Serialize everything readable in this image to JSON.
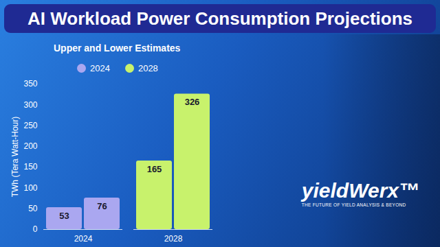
{
  "chart_data": {
    "type": "bar",
    "title": "AI Workload Power Consumption Projections",
    "subtitle": "Upper and Lower Estimates",
    "y_label": "TWh (Tera Watt-Hour)",
    "categories": [
      "2024",
      "2028"
    ],
    "series": [
      {
        "name": "2024",
        "color": "#aaa7f0",
        "category": "2024",
        "values": [
          53,
          76
        ]
      },
      {
        "name": "2028",
        "color": "#c8f26c",
        "category": "2028",
        "values": [
          165,
          326
        ]
      }
    ],
    "ylim": [
      0,
      350
    ],
    "yticks": [
      0,
      50,
      100,
      150,
      200,
      250,
      300,
      350
    ],
    "grid": false,
    "legend": "top",
    "data_labels": true,
    "annotations": [
      "yieldWerx™",
      "THE FUTURE OF YIELD ANALYSIS & BEYOND"
    ]
  }
}
